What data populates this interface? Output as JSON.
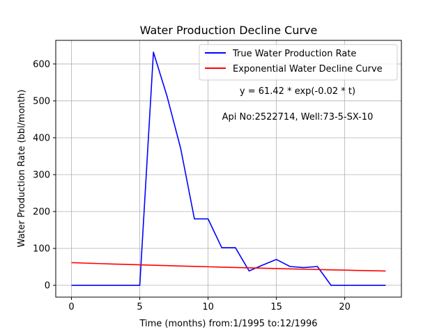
{
  "chart_data": {
    "type": "line",
    "title": "Water Production Decline Curve",
    "xlabel": "Time (months) from:1/1995 to:12/1996",
    "ylabel": "Water Production Rate (bbl/month)",
    "xlim": [
      -1.15,
      24.15
    ],
    "ylim": [
      -32,
      664
    ],
    "xticks": [
      0,
      5,
      10,
      15,
      20
    ],
    "yticks": [
      0,
      100,
      200,
      300,
      400,
      500,
      600
    ],
    "grid": true,
    "legend_position": "top-right",
    "series": [
      {
        "name": "True Water Production Rate",
        "color": "#0000ff",
        "x": [
          0,
          1,
          2,
          3,
          4,
          5,
          6,
          7,
          8,
          9,
          10,
          11,
          12,
          13,
          14,
          15,
          16,
          17,
          18,
          19,
          20,
          21,
          22,
          23
        ],
        "y": [
          0,
          0,
          0,
          0,
          0,
          0,
          632,
          512,
          370,
          180,
          180,
          102,
          102,
          39,
          55,
          70,
          51,
          48,
          51,
          0,
          0,
          0,
          0,
          0
        ]
      },
      {
        "name": "Exponential Water Decline Curve",
        "color": "#ff0000",
        "x": [
          0,
          1,
          2,
          3,
          4,
          5,
          6,
          7,
          8,
          9,
          10,
          11,
          12,
          13,
          14,
          15,
          16,
          17,
          18,
          19,
          20,
          21,
          22,
          23
        ],
        "y": [
          61.42,
          60.2,
          59.0,
          57.8,
          56.7,
          55.6,
          54.5,
          53.4,
          52.3,
          51.3,
          50.3,
          49.3,
          48.3,
          47.3,
          46.4,
          45.5,
          44.6,
          43.7,
          42.8,
          42.0,
          41.2,
          40.3,
          39.5,
          38.8
        ]
      }
    ],
    "annotations": [
      "y = 61.42 * exp(-0.02 * t)",
      "Api No:2522714, Well:73-5-SX-10"
    ]
  }
}
